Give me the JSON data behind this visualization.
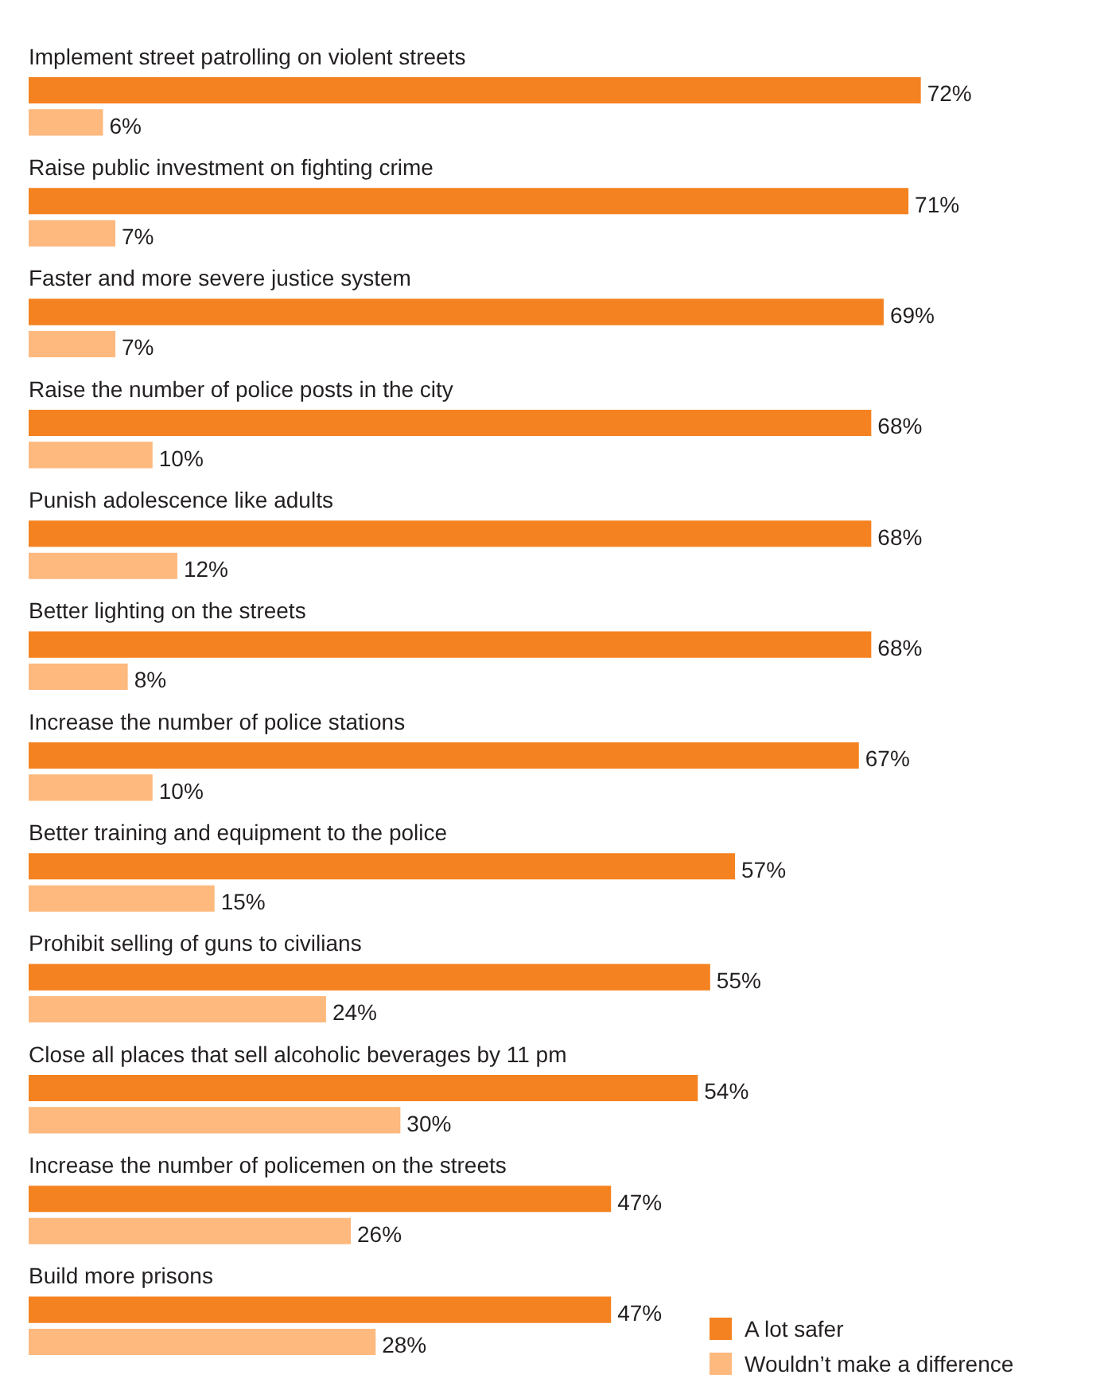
{
  "chart_data": {
    "type": "bar",
    "orientation": "horizontal",
    "tick_labels": false,
    "legend": "bottom right",
    "categories": [
      "Implement street patrolling on violent streets",
      "Raise public investment on fighting crime",
      "Faster and more severe justice system",
      "Raise the number of police posts in the city",
      "Punish adolescence like adults",
      "Better lighting on the streets",
      "Increase the number of police stations",
      "Better training and equipment to the police",
      "Prohibit selling of guns to civilians",
      "Close all places that sell alcoholic beverages by 11 pm",
      "Increase the number of policemen on the streets",
      "Build more prisons"
    ],
    "series": [
      {
        "name": "A lot safer",
        "color": "#f58220",
        "values": [
          72,
          71,
          69,
          68,
          68,
          68,
          67,
          57,
          55,
          54,
          47,
          47
        ],
        "value_labels": [
          "72%",
          "71%",
          "69%",
          "68%",
          "68%",
          "68%",
          "67%",
          "57%",
          "55%",
          "54%",
          "47%",
          "47%"
        ]
      },
      {
        "name": "Wouldn’t make a difference",
        "color": "#fdb97e",
        "values": [
          6,
          7,
          7,
          10,
          12,
          8,
          10,
          15,
          24,
          30,
          26,
          28
        ],
        "value_labels": [
          "6%",
          "7%",
          "7%",
          "10%",
          "12%",
          "8%",
          "10%",
          "15%",
          "24%",
          "30%",
          "26%",
          "28%"
        ]
      }
    ]
  }
}
